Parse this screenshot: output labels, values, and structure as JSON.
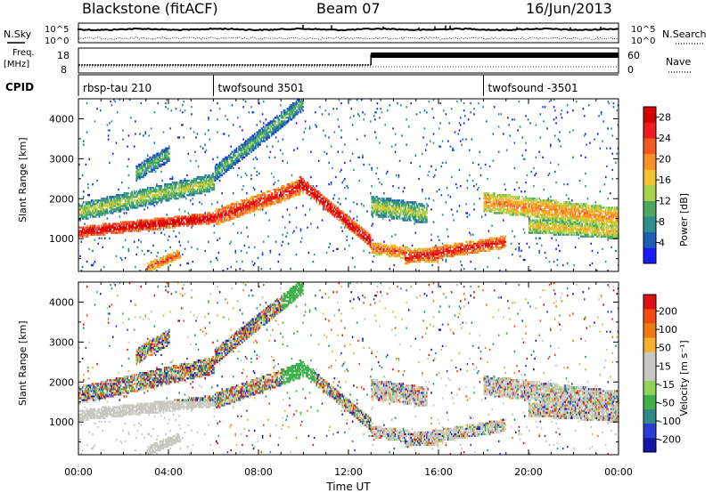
{
  "header": {
    "title": "Blackstone (fitACF)",
    "beam": "Beam 07",
    "date": "16/Jun/2013"
  },
  "panel_labels": {
    "nsky": "N.Sky",
    "nsearch": "N.Search",
    "freq_line1": "Freq.",
    "freq_line2": "[MHz]",
    "nave": "Nave",
    "cpid": "CPID"
  },
  "top_ticks": {
    "noise_left_top": "10^5",
    "noise_left_bottom": "10^0",
    "noise_right_top": "10^5",
    "noise_right_bottom": "10^0",
    "freq_left_top": "18",
    "freq_left_bottom": "8",
    "nave_right_top": "60",
    "nave_right_bottom": "0"
  },
  "cpid": [
    {
      "label": "rbsp-tau 210",
      "start_hour": 0
    },
    {
      "label": "twofsound 3501",
      "start_hour": 6
    },
    {
      "label": "twofsound -3501",
      "start_hour": 18
    }
  ],
  "axes": {
    "ylabel": "Slant Range [km]",
    "xlabel": "Time UT",
    "yticks": [
      "1000",
      "2000",
      "3000",
      "4000"
    ],
    "xticks": [
      "00:00",
      "04:00",
      "08:00",
      "12:00",
      "16:00",
      "20:00",
      "00:00"
    ]
  },
  "power_colorbar": {
    "title": "Power [dB]",
    "ticks": [
      "4",
      "8",
      "12",
      "16",
      "20",
      "24",
      "28"
    ],
    "colors": [
      "#1a1aff",
      "#1e5fb4",
      "#2f8f8f",
      "#4ca860",
      "#a6d24a",
      "#f2c12e",
      "#f7922a",
      "#f5591f",
      "#ee1c1c",
      "#d40000"
    ]
  },
  "velocity_colorbar": {
    "title": "Velocity [m s⁻¹]",
    "ticks": [
      "200",
      "100",
      "50",
      "15",
      "-15",
      "-50",
      "-100",
      "-200"
    ],
    "colors": [
      "#1515a8",
      "#2a3cd6",
      "#2f8a8a",
      "#3fb04a",
      "#8fd35a",
      "#c8c8c0",
      "#c8c8c0",
      "#f6b030",
      "#f07a12",
      "#f24a10",
      "#e01010"
    ]
  },
  "chart_data": {
    "type": "heatmap",
    "x_range_hours": [
      0,
      24
    ],
    "y_range_km": [
      180,
      4500
    ],
    "series": [
      {
        "name": "Power [dB]",
        "clim": [
          0,
          30
        ]
      },
      {
        "name": "Velocity [m s⁻¹]",
        "clim": [
          -200,
          200
        ]
      }
    ]
  }
}
